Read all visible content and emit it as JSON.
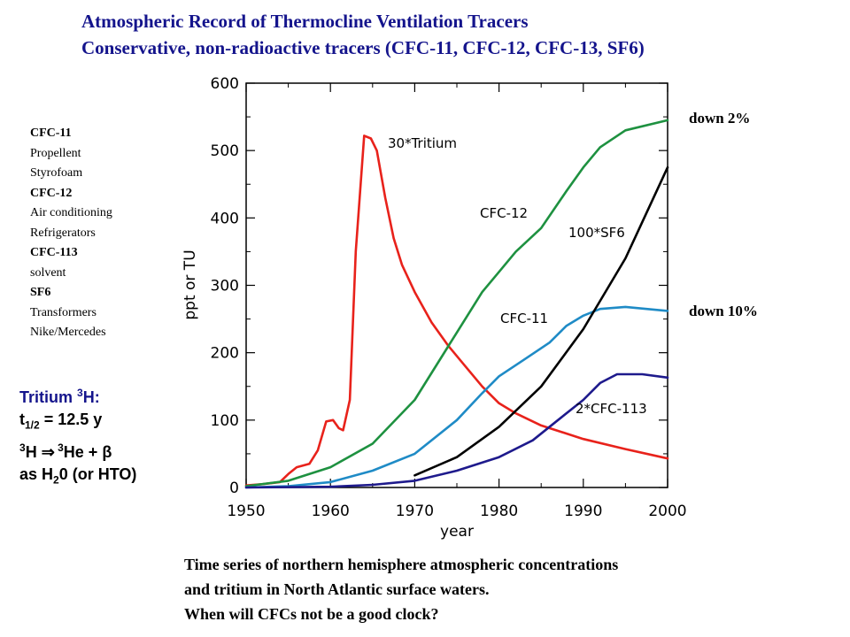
{
  "title_line1": "Atmospheric Record of Thermocline Ventilation Tracers",
  "title_line2": "Conservative, non-radioactive tracers (CFC-11, CFC-12, CFC-13, SF6)",
  "legend": {
    "cfc11": "CFC-11",
    "propellent": "Propellent",
    "styrofoam": "Styrofoam",
    "cfc12": "CFC-12",
    "air_conditioning": "Air conditioning",
    "refrigerators": "Refrigerators",
    "cfc113": "CFC-113",
    "solvent": "solvent",
    "sf6": "SF6",
    "transformers": "Transformers",
    "nike": "Nike/Mercedes"
  },
  "tritium_note": {
    "line1_a": "Tritium ",
    "line1_sup": "3",
    "line1_b": "H:",
    "line2_a": "t",
    "line2_sub": "1/2",
    "line2_b": " = 12.5 y",
    "line3_sup1": "3",
    "line3_a": "H ",
    "line3_arrow": "⇒",
    "line3_sup2": " 3",
    "line3_b": "He + ",
    "line3_beta": "β",
    "line4_a": "as H",
    "line4_sub": "2",
    "line4_b": "0 (or HTO)"
  },
  "notes": {
    "down2": "down 2%",
    "down10": "down 10%"
  },
  "caption": {
    "line1": "Time series of northern hemisphere atmospheric concentrations",
    "line2": "and tritium in North Atlantic surface waters.",
    "line3": "When will CFCs not be a good clock?"
  },
  "chart_data": {
    "type": "line",
    "xlabel": "year",
    "ylabel": "ppt or TU",
    "xlim": [
      1950,
      2000
    ],
    "ylim": [
      0,
      600
    ],
    "xticks": [
      1950,
      1960,
      1970,
      1980,
      1990,
      2000
    ],
    "yticks": [
      0,
      100,
      200,
      300,
      400,
      500,
      600
    ],
    "grid": false,
    "series": [
      {
        "name": "30*Tritium",
        "color": "#e8221b",
        "x": [
          1950,
          1952,
          1954,
          1955,
          1956,
          1957.5,
          1958.5,
          1959.5,
          1960.3,
          1961,
          1961.5,
          1962.3,
          1963,
          1964,
          1964.8,
          1965.5,
          1966.5,
          1967.5,
          1968.5,
          1970,
          1972,
          1974,
          1976,
          1978,
          1980,
          1982,
          1985,
          1990,
          1995,
          2000
        ],
        "y": [
          3,
          5,
          8,
          20,
          30,
          35,
          55,
          98,
          100,
          88,
          85,
          130,
          350,
          522,
          518,
          500,
          430,
          370,
          330,
          290,
          245,
          210,
          180,
          150,
          125,
          110,
          92,
          72,
          57,
          43
        ]
      },
      {
        "name": "CFC-12",
        "color": "#1e9140",
        "x": [
          1950,
          1955,
          1960,
          1965,
          1970,
          1975,
          1978,
          1980,
          1982,
          1985,
          1988,
          1990,
          1992,
          1995,
          2000
        ],
        "y": [
          2,
          10,
          30,
          65,
          130,
          230,
          290,
          320,
          350,
          385,
          440,
          475,
          505,
          530,
          545
        ]
      },
      {
        "name": "CFC-11",
        "color": "#1f8bc6",
        "x": [
          1950,
          1955,
          1960,
          1965,
          1970,
          1975,
          1978,
          1980,
          1983,
          1986,
          1988,
          1990,
          1992,
          1995,
          2000
        ],
        "y": [
          0,
          2,
          8,
          25,
          50,
          100,
          140,
          165,
          190,
          215,
          240,
          255,
          265,
          268,
          262
        ]
      },
      {
        "name": "100*SF6",
        "color": "#000000",
        "x": [
          1970,
          1975,
          1980,
          1985,
          1990,
          1995,
          2000
        ],
        "y": [
          18,
          45,
          90,
          150,
          235,
          340,
          475
        ]
      },
      {
        "name": "2*CFC-113",
        "color": "#1e1a8c",
        "x": [
          1950,
          1960,
          1965,
          1970,
          1975,
          1980,
          1984,
          1987,
          1990,
          1992,
          1994,
          1997,
          2000
        ],
        "y": [
          0,
          1,
          4,
          10,
          25,
          45,
          70,
          100,
          130,
          155,
          168,
          168,
          163
        ]
      }
    ]
  }
}
